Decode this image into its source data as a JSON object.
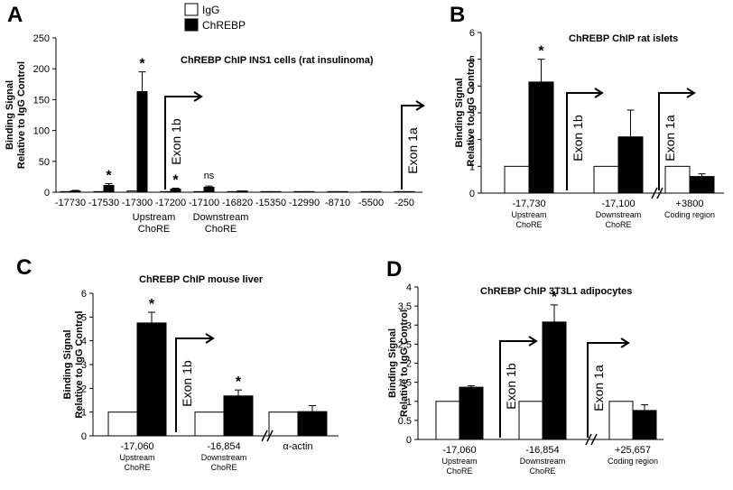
{
  "legend": {
    "igg_label": "IgG",
    "chrebp_label": "ChREBP",
    "igg_color": "#ffffff",
    "chrebp_color": "#000000"
  },
  "chart_data": [
    {
      "panel": "A",
      "type": "bar",
      "title": "ChREBP ChIP INS1 cells (rat insulinoma)",
      "ylabel": "Binding Signal Relative to IgG Control",
      "ylim": [
        0,
        250
      ],
      "yticks": [
        0,
        50,
        100,
        150,
        200,
        250
      ],
      "categories": [
        "-17730",
        "-17530",
        "-17300",
        "-17200",
        "-17100",
        "-16820",
        "-15350",
        "-12990",
        "-8710",
        "-5500",
        "-250"
      ],
      "subgroup_labels": [
        {
          "between": [
            2,
            3
          ],
          "lines": [
            "Upstream",
            "ChoRE"
          ]
        },
        {
          "between": [
            4,
            5
          ],
          "lines": [
            "Downstream",
            "ChoRE"
          ]
        }
      ],
      "series": [
        {
          "name": "IgG",
          "values": [
            1,
            1,
            2,
            1,
            1,
            1,
            1,
            1,
            1,
            1,
            1
          ],
          "errors": [
            0.3,
            0.3,
            0.5,
            0.3,
            0.3,
            0.3,
            0.3,
            0.3,
            0.3,
            0.3,
            0.3
          ]
        },
        {
          "name": "ChREBP",
          "values": [
            2,
            11,
            163,
            5,
            8,
            2,
            1,
            1,
            1,
            1,
            1
          ],
          "errors": [
            1,
            3,
            32,
            1.5,
            2,
            0.5,
            0.3,
            0.3,
            0.3,
            0.3,
            0.3
          ]
        }
      ],
      "annotations": [
        {
          "category": 1,
          "text": "*"
        },
        {
          "category": 2,
          "text": "*"
        },
        {
          "category": 3,
          "text": "*"
        },
        {
          "category": 4,
          "text": "ns"
        }
      ],
      "exons": [
        "Exon 1b",
        "Exon 1a"
      ]
    },
    {
      "panel": "B",
      "type": "bar",
      "title": "ChREBP ChIP  rat islets",
      "ylabel": "Binding Signal Relative to IgG Control",
      "ylim": [
        0,
        6
      ],
      "yticks": [
        0,
        1,
        2,
        3,
        4,
        5,
        6
      ],
      "categories": [
        "-17,730",
        "-17,100",
        "+3800"
      ],
      "subcategories": [
        [
          "Upstream",
          "ChoRE"
        ],
        [
          "Downstream",
          "ChoRE"
        ],
        [
          "Coding region"
        ]
      ],
      "series": [
        {
          "name": "IgG",
          "values": [
            1,
            1,
            1
          ],
          "errors": [
            0,
            0,
            0
          ]
        },
        {
          "name": "ChREBP",
          "values": [
            4.15,
            2.1,
            0.62
          ],
          "errors": [
            0.85,
            1.0,
            0.1
          ]
        }
      ],
      "annotations": [
        {
          "category": 0,
          "text": "*"
        }
      ],
      "exons": [
        "Exon 1b",
        "Exon 1a"
      ]
    },
    {
      "panel": "C",
      "type": "bar",
      "title": "ChREBP ChIP  mouse liver",
      "ylabel": "Binding Signal Relative to IgG Control",
      "ylim": [
        0,
        6
      ],
      "yticks": [
        0,
        1,
        2,
        3,
        4,
        5,
        6
      ],
      "categories": [
        "-17,060",
        "-16,854",
        "α-actin"
      ],
      "subcategories": [
        [
          "Upstream",
          "ChoRE"
        ],
        [
          "Downstream",
          "ChoRE"
        ],
        []
      ],
      "series": [
        {
          "name": "IgG",
          "values": [
            1,
            1,
            1
          ],
          "errors": [
            0,
            0,
            0
          ]
        },
        {
          "name": "ChREBP",
          "values": [
            4.75,
            1.68,
            1.02
          ],
          "errors": [
            0.45,
            0.25,
            0.25
          ]
        }
      ],
      "annotations": [
        {
          "category": 0,
          "text": "*"
        },
        {
          "category": 1,
          "text": "*"
        }
      ],
      "exons": [
        "Exon 1b"
      ]
    },
    {
      "panel": "D",
      "type": "bar",
      "title": "ChREBP ChIP  3T3L1 adipocytes",
      "ylabel": "Binding Signal Relative to IgG Control",
      "ylim": [
        0,
        4
      ],
      "yticks": [
        0,
        0.5,
        1,
        1.5,
        2,
        2.5,
        3,
        3.5,
        4
      ],
      "categories": [
        "-17,060",
        "-16,854",
        "+25,657"
      ],
      "subcategories": [
        [
          "Upstream",
          "ChoRE"
        ],
        [
          "Downstream",
          "ChoRE"
        ],
        [
          "Coding region"
        ]
      ],
      "series": [
        {
          "name": "IgG",
          "values": [
            1,
            1,
            1
          ],
          "errors": [
            0,
            0,
            0
          ]
        },
        {
          "name": "ChREBP",
          "values": [
            1.37,
            3.08,
            0.76
          ],
          "errors": [
            0.04,
            0.45,
            0.15
          ]
        }
      ],
      "annotations": [
        {
          "category": 1,
          "text": "*"
        }
      ],
      "exons": [
        "Exon 1b",
        "Exon 1a"
      ]
    }
  ]
}
